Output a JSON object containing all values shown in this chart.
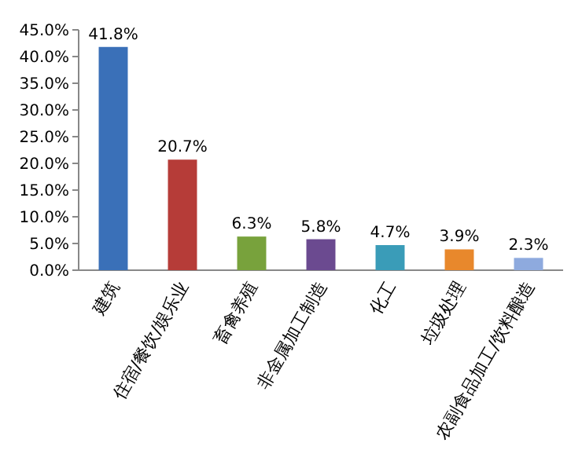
{
  "chart_data": {
    "type": "bar",
    "categories": [
      "建筑",
      "住宿/餐饮/娱乐业",
      "畜禽养殖",
      "非金属加工制造",
      "化工",
      "垃圾处理",
      "农副食品加工/饮料酿造"
    ],
    "values": [
      41.8,
      20.7,
      6.3,
      5.8,
      4.7,
      3.9,
      2.3
    ],
    "value_labels": [
      "41.8%",
      "20.7%",
      "6.3%",
      "5.8%",
      "4.7%",
      "3.9%",
      "2.3%"
    ],
    "colors": [
      "#3a70b8",
      "#b63c38",
      "#78a23c",
      "#6b4a90",
      "#3a9cb8",
      "#e8882c",
      "#8eaade"
    ],
    "ylim": [
      0,
      45
    ],
    "yticks": [
      {
        "value": 0,
        "label": "0.0%"
      },
      {
        "value": 5,
        "label": "5.0%"
      },
      {
        "value": 10,
        "label": "10.0%"
      },
      {
        "value": 15,
        "label": "15.0%"
      },
      {
        "value": 20,
        "label": "20.0%"
      },
      {
        "value": 25,
        "label": "25.0%"
      },
      {
        "value": 30,
        "label": "30.0%"
      },
      {
        "value": 35,
        "label": "35.0%"
      },
      {
        "value": 40,
        "label": "40.0%"
      },
      {
        "value": 45,
        "label": "45.0%"
      }
    ],
    "grid": false
  }
}
